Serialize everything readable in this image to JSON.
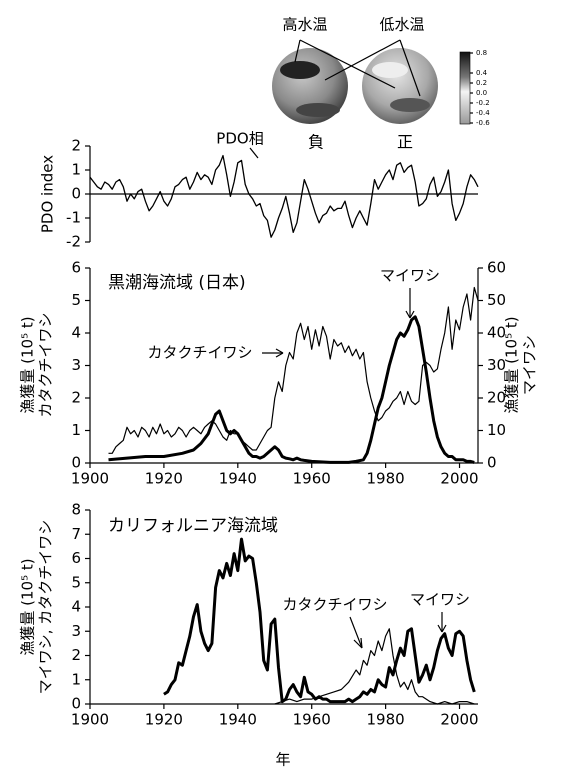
{
  "inset": {
    "warm_label": "高水温",
    "cold_label": "低水温",
    "negative_label": "負",
    "positive_label": "正",
    "colorbar_ticks": [
      0.8,
      0.4,
      0.2,
      {
        "value": 0,
        "label": "0.0"
      },
      -0.2,
      -0.4,
      -0.6
    ]
  },
  "chart_data": [
    {
      "type": "line",
      "ylabel": "PDO index",
      "annotations": [
        "PDO相"
      ],
      "xlim": [
        1900,
        2005
      ],
      "ylim": [
        -2,
        2
      ],
      "yticks": [
        -2,
        -1,
        0,
        1,
        2
      ],
      "x": [
        1900,
        1901,
        1902,
        1903,
        1904,
        1905,
        1906,
        1907,
        1908,
        1909,
        1910,
        1911,
        1912,
        1913,
        1914,
        1915,
        1916,
        1917,
        1918,
        1919,
        1920,
        1921,
        1922,
        1923,
        1924,
        1925,
        1926,
        1927,
        1928,
        1929,
        1930,
        1931,
        1932,
        1933,
        1934,
        1935,
        1936,
        1937,
        1938,
        1939,
        1940,
        1941,
        1942,
        1943,
        1944,
        1945,
        1946,
        1947,
        1948,
        1949,
        1950,
        1951,
        1952,
        1953,
        1954,
        1955,
        1956,
        1957,
        1958,
        1959,
        1960,
        1961,
        1962,
        1963,
        1964,
        1965,
        1966,
        1967,
        1968,
        1969,
        1970,
        1971,
        1972,
        1973,
        1974,
        1975,
        1976,
        1977,
        1978,
        1979,
        1980,
        1981,
        1982,
        1983,
        1984,
        1985,
        1986,
        1987,
        1988,
        1989,
        1990,
        1991,
        1992,
        1993,
        1994,
        1995,
        1996,
        1997,
        1998,
        1999,
        2000,
        2001,
        2002,
        2003,
        2004,
        2005
      ],
      "series": [
        {
          "color": "#000000",
          "values": [
            0.7,
            0.5,
            0.3,
            0.2,
            0.5,
            0.4,
            0.2,
            0.5,
            0.6,
            0.3,
            -0.3,
            0.0,
            -0.2,
            0.1,
            0.2,
            -0.3,
            -0.7,
            -0.5,
            -0.2,
            0.1,
            -0.3,
            -0.5,
            -0.2,
            0.3,
            0.4,
            0.6,
            0.7,
            0.2,
            0.5,
            0.9,
            0.6,
            0.8,
            0.7,
            0.4,
            1.0,
            1.2,
            1.6,
            0.8,
            -0.1,
            0.5,
            1.3,
            1.4,
            0.4,
            0.0,
            -0.2,
            -0.5,
            -0.4,
            -0.9,
            -1.1,
            -1.8,
            -1.5,
            -1.0,
            -0.6,
            -0.1,
            -0.8,
            -1.6,
            -1.2,
            -0.3,
            0.6,
            0.2,
            -0.3,
            -0.8,
            -1.2,
            -0.9,
            -0.8,
            -0.5,
            -0.7,
            -0.6,
            -0.6,
            -0.3,
            -0.9,
            -1.4,
            -1.0,
            -0.7,
            -1.0,
            -1.3,
            -0.4,
            0.6,
            0.2,
            0.5,
            0.8,
            1.0,
            0.6,
            1.2,
            1.3,
            0.9,
            1.1,
            1.2,
            0.5,
            -0.5,
            -0.4,
            -0.2,
            0.4,
            0.7,
            -0.1,
            0.1,
            0.5,
            1.0,
            -0.4,
            -1.1,
            -0.8,
            -0.4,
            0.3,
            0.8,
            0.6,
            0.3
          ]
        }
      ]
    },
    {
      "type": "line",
      "title": "黒潮海流域 (日本)",
      "ylabel": [
        "漁獲量 (10⁵ t)",
        "カタクチイワシ"
      ],
      "y2label": [
        "漁獲量 (10⁵ t)",
        "マイワシ"
      ],
      "xlim": [
        1900,
        2005
      ],
      "xticks": [
        1900,
        1920,
        1940,
        1960,
        1980,
        2000
      ],
      "ylim": [
        0,
        6
      ],
      "yticks": [
        0,
        1,
        2,
        3,
        4,
        5,
        6
      ],
      "y2lim": [
        0,
        60
      ],
      "y2ticks": [
        0,
        10,
        20,
        30,
        40,
        50,
        60
      ],
      "series": [
        {
          "name": "カタクチイワシ",
          "color": "#000000",
          "x": [
            1905,
            1906,
            1907,
            1908,
            1909,
            1910,
            1911,
            1912,
            1913,
            1914,
            1915,
            1916,
            1917,
            1918,
            1919,
            1920,
            1921,
            1922,
            1923,
            1924,
            1925,
            1926,
            1927,
            1928,
            1929,
            1930,
            1931,
            1932,
            1933,
            1934,
            1935,
            1936,
            1937,
            1938,
            1939,
            1940,
            1941,
            1942,
            1943,
            1944,
            1945,
            1946,
            1947,
            1948,
            1949,
            1950,
            1951,
            1952,
            1953,
            1954,
            1955,
            1956,
            1957,
            1958,
            1959,
            1960,
            1961,
            1962,
            1963,
            1964,
            1965,
            1966,
            1967,
            1968,
            1969,
            1970,
            1971,
            1972,
            1973,
            1974,
            1975,
            1976,
            1977,
            1978,
            1979,
            1980,
            1981,
            1982,
            1983,
            1984,
            1985,
            1986,
            1987,
            1988,
            1989,
            1990,
            1991,
            1992,
            1993,
            1994,
            1995,
            1996,
            1997,
            1998,
            1999,
            2000,
            2001,
            2002,
            2003,
            2004,
            2005
          ],
          "values": [
            0.3,
            0.3,
            0.5,
            0.6,
            0.7,
            1.1,
            0.9,
            1.0,
            0.8,
            1.1,
            1.0,
            0.8,
            1.1,
            0.9,
            1.2,
            0.9,
            1.0,
            0.8,
            0.9,
            1.1,
            1.0,
            0.8,
            1.0,
            1.1,
            1.0,
            0.9,
            1.1,
            1.2,
            1.3,
            1.2,
            1.0,
            0.8,
            0.7,
            1.0,
            0.9,
            0.9,
            0.7,
            0.6,
            0.5,
            0.4,
            0.4,
            0.6,
            0.8,
            1.0,
            1.1,
            2.0,
            2.5,
            2.2,
            3.0,
            3.4,
            3.2,
            4.0,
            4.3,
            3.8,
            4.2,
            3.5,
            4.1,
            3.6,
            4.2,
            3.9,
            3.2,
            3.8,
            3.6,
            3.7,
            3.4,
            3.6,
            3.3,
            3.5,
            3.2,
            3.4,
            2.5,
            2.0,
            1.6,
            1.3,
            1.4,
            1.6,
            1.7,
            1.9,
            2.0,
            2.2,
            1.8,
            2.2,
            1.9,
            1.8,
            1.9,
            3.0,
            3.1,
            3.0,
            2.8,
            2.9,
            3.5,
            4.0,
            4.8,
            3.5,
            4.4,
            4.1,
            4.8,
            5.2,
            4.4,
            5.4,
            5.0
          ]
        },
        {
          "name": "マイワシ",
          "color": "#000000",
          "axis": "y2",
          "x": [
            1905,
            1910,
            1915,
            1920,
            1925,
            1928,
            1930,
            1932,
            1933,
            1934,
            1935,
            1936,
            1937,
            1938,
            1939,
            1940,
            1941,
            1942,
            1943,
            1944,
            1945,
            1946,
            1947,
            1948,
            1949,
            1950,
            1951,
            1952,
            1953,
            1954,
            1955,
            1956,
            1957,
            1958,
            1960,
            1965,
            1970,
            1972,
            1974,
            1975,
            1976,
            1977,
            1978,
            1979,
            1980,
            1981,
            1982,
            1983,
            1984,
            1985,
            1986,
            1987,
            1988,
            1989,
            1990,
            1991,
            1992,
            1993,
            1994,
            1995,
            1996,
            1997,
            1998,
            1999,
            2000,
            2001,
            2002,
            2003,
            2004
          ],
          "values": [
            1,
            1.5,
            2,
            2,
            3,
            4,
            6,
            9,
            12,
            15,
            16,
            13,
            10,
            9,
            10,
            9,
            7,
            5,
            3,
            2,
            2,
            1.5,
            2,
            3,
            4,
            5,
            4,
            2,
            1.5,
            1.3,
            1,
            1.5,
            1,
            0.8,
            0.5,
            0.2,
            0.2,
            0.5,
            1,
            3,
            7,
            12,
            17,
            20,
            25,
            30,
            34,
            38,
            40,
            39,
            41,
            44,
            45,
            42,
            35,
            28,
            20,
            13,
            8,
            5,
            3,
            2,
            2,
            1,
            1,
            1,
            0.5,
            0.5,
            0.2
          ]
        }
      ]
    },
    {
      "type": "line",
      "title": "カリフォルニア海流域",
      "ylabel": [
        "漁獲量 (10⁵ t)",
        "マイワシ, カタクチイワシ"
      ],
      "xlabel": "年",
      "xlim": [
        1900,
        2005
      ],
      "xticks": [
        1900,
        1920,
        1940,
        1960,
        1980,
        2000
      ],
      "ylim": [
        0,
        8
      ],
      "yticks": [
        0,
        1,
        2,
        3,
        4,
        5,
        6,
        7,
        8
      ],
      "series": [
        {
          "name": "マイワシ",
          "color": "#000000",
          "x": [
            1920,
            1921,
            1922,
            1923,
            1924,
            1925,
            1926,
            1927,
            1928,
            1929,
            1930,
            1931,
            1932,
            1933,
            1934,
            1935,
            1936,
            1937,
            1938,
            1939,
            1940,
            1941,
            1942,
            1943,
            1944,
            1945,
            1946,
            1947,
            1948,
            1949,
            1950,
            1951,
            1952,
            1953,
            1954,
            1955,
            1956,
            1957,
            1958,
            1959,
            1960,
            1961,
            1962,
            1963,
            1964,
            1965,
            1966,
            1967,
            1968,
            1969,
            1970,
            1971,
            1972,
            1973,
            1974,
            1975,
            1976,
            1977,
            1978,
            1979,
            1980,
            1981,
            1982,
            1983,
            1984,
            1985,
            1986,
            1987,
            1988,
            1989,
            1990,
            1991,
            1992,
            1993,
            1994,
            1995,
            1996,
            1997,
            1998,
            1999,
            2000,
            2001,
            2002,
            2003,
            2004
          ],
          "values": [
            0.4,
            0.5,
            0.8,
            1.0,
            1.7,
            1.6,
            2.2,
            2.8,
            3.6,
            4.1,
            3.0,
            2.5,
            2.2,
            2.5,
            4.8,
            5.5,
            5.2,
            5.8,
            5.3,
            6.2,
            5.5,
            6.8,
            5.9,
            6.1,
            6.0,
            5.0,
            3.8,
            1.8,
            1.4,
            3.3,
            3.5,
            1.5,
            0.1,
            0.2,
            0.6,
            0.8,
            0.5,
            0.3,
            1.1,
            0.5,
            0.4,
            0.2,
            0.3,
            0.2,
            0.2,
            0.1,
            0.1,
            0.1,
            0.1,
            0.1,
            0.2,
            0.1,
            0.2,
            0.3,
            0.5,
            0.4,
            0.6,
            0.5,
            1.0,
            0.8,
            0.7,
            1.5,
            1.2,
            1.8,
            2.3,
            2.0,
            3.0,
            3.1,
            2.0,
            0.9,
            1.2,
            1.6,
            1.0,
            1.5,
            2.2,
            2.7,
            2.9,
            2.3,
            2.0,
            2.9,
            3.0,
            2.8,
            1.8,
            1.0,
            0.5
          ]
        },
        {
          "name": "カタクチイワシ",
          "color": "#000000",
          "x": [
            1950,
            1952,
            1954,
            1956,
            1958,
            1960,
            1962,
            1964,
            1966,
            1968,
            1970,
            1972,
            1973,
            1974,
            1975,
            1976,
            1977,
            1978,
            1979,
            1980,
            1981,
            1982,
            1983,
            1984,
            1985,
            1986,
            1987,
            1988,
            1989,
            1990,
            1992,
            1994,
            1996,
            1998,
            2000,
            2002,
            2004
          ],
          "values": [
            0.0,
            0.1,
            0.2,
            0.1,
            0.2,
            0.2,
            0.3,
            0.4,
            0.5,
            0.6,
            0.9,
            1.4,
            1.2,
            1.8,
            1.6,
            2.2,
            2.0,
            2.6,
            2.2,
            2.8,
            3.1,
            2.0,
            1.2,
            0.7,
            0.9,
            0.6,
            1.0,
            0.5,
            0.3,
            0.3,
            0.1,
            0.0,
            0.1,
            0.0,
            0.1,
            0.1,
            0.0
          ]
        }
      ]
    }
  ]
}
